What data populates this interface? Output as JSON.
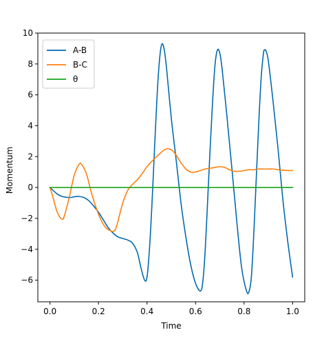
{
  "chart_data": {
    "type": "line",
    "title": "",
    "xlabel": "Time",
    "ylabel": "Momentum",
    "xlim": [
      -0.05,
      1.05
    ],
    "ylim": [
      -7.4,
      10.0
    ],
    "xticks": [
      0.0,
      0.2,
      0.4,
      0.6,
      0.8,
      1.0
    ],
    "xtick_labels": [
      "0.0",
      "0.2",
      "0.4",
      "0.6",
      "0.8",
      "1.0"
    ],
    "yticks": [
      -6,
      -4,
      -2,
      0,
      2,
      4,
      6,
      8,
      10
    ],
    "ytick_labels": [
      "−6",
      "−4",
      "−2",
      "0",
      "2",
      "4",
      "6",
      "8",
      "10"
    ],
    "grid": false,
    "legend_position": "top-left",
    "series": [
      {
        "name": "A-B",
        "color": "#0069b0",
        "points": [
          [
            0.0,
            0.0
          ],
          [
            0.03,
            -0.42
          ],
          [
            0.05,
            -0.58
          ],
          [
            0.08,
            -0.65
          ],
          [
            0.1,
            -0.6
          ],
          [
            0.12,
            -0.58
          ],
          [
            0.14,
            -0.65
          ],
          [
            0.16,
            -0.85
          ],
          [
            0.18,
            -1.2
          ],
          [
            0.2,
            -1.6
          ],
          [
            0.22,
            -2.1
          ],
          [
            0.24,
            -2.6
          ],
          [
            0.26,
            -2.95
          ],
          [
            0.28,
            -3.2
          ],
          [
            0.3,
            -3.3
          ],
          [
            0.32,
            -3.4
          ],
          [
            0.34,
            -3.6
          ],
          [
            0.36,
            -4.2
          ],
          [
            0.375,
            -5.2
          ],
          [
            0.39,
            -6.0
          ],
          [
            0.4,
            -5.8
          ],
          [
            0.41,
            -4.0
          ],
          [
            0.42,
            -1.2
          ],
          [
            0.43,
            2.2
          ],
          [
            0.44,
            5.5
          ],
          [
            0.45,
            8.0
          ],
          [
            0.46,
            9.25
          ],
          [
            0.47,
            9.0
          ],
          [
            0.48,
            7.8
          ],
          [
            0.5,
            4.5
          ],
          [
            0.52,
            1.8
          ],
          [
            0.54,
            -1.0
          ],
          [
            0.56,
            -3.2
          ],
          [
            0.58,
            -5.0
          ],
          [
            0.6,
            -6.2
          ],
          [
            0.62,
            -6.7
          ],
          [
            0.63,
            -6.1
          ],
          [
            0.64,
            -4.0
          ],
          [
            0.65,
            -0.8
          ],
          [
            0.66,
            2.5
          ],
          [
            0.67,
            5.5
          ],
          [
            0.68,
            7.9
          ],
          [
            0.69,
            8.9
          ],
          [
            0.7,
            8.7
          ],
          [
            0.71,
            7.6
          ],
          [
            0.73,
            4.5
          ],
          [
            0.75,
            1.2
          ],
          [
            0.77,
            -2.2
          ],
          [
            0.79,
            -5.2
          ],
          [
            0.81,
            -6.7
          ],
          [
            0.82,
            -6.75
          ],
          [
            0.83,
            -5.8
          ],
          [
            0.84,
            -3.0
          ],
          [
            0.85,
            0.5
          ],
          [
            0.86,
            4.0
          ],
          [
            0.87,
            7.0
          ],
          [
            0.88,
            8.7
          ],
          [
            0.885,
            8.9
          ],
          [
            0.89,
            8.85
          ],
          [
            0.9,
            8.2
          ],
          [
            0.92,
            5.5
          ],
          [
            0.94,
            2.5
          ],
          [
            0.96,
            -0.8
          ],
          [
            0.98,
            -3.5
          ],
          [
            1.0,
            -5.8
          ]
        ]
      },
      {
        "name": "B-C",
        "color": "#ff7f0e",
        "points": [
          [
            0.0,
            0.0
          ],
          [
            0.01,
            -0.5
          ],
          [
            0.03,
            -1.6
          ],
          [
            0.05,
            -2.05
          ],
          [
            0.06,
            -1.8
          ],
          [
            0.08,
            -0.6
          ],
          [
            0.1,
            0.8
          ],
          [
            0.12,
            1.5
          ],
          [
            0.13,
            1.5
          ],
          [
            0.15,
            0.9
          ],
          [
            0.17,
            -0.3
          ],
          [
            0.19,
            -1.3
          ],
          [
            0.21,
            -2.1
          ],
          [
            0.23,
            -2.6
          ],
          [
            0.25,
            -2.8
          ],
          [
            0.26,
            -2.85
          ],
          [
            0.27,
            -2.7
          ],
          [
            0.28,
            -2.2
          ],
          [
            0.3,
            -1.0
          ],
          [
            0.32,
            -0.2
          ],
          [
            0.34,
            0.2
          ],
          [
            0.36,
            0.5
          ],
          [
            0.38,
            0.9
          ],
          [
            0.4,
            1.35
          ],
          [
            0.42,
            1.7
          ],
          [
            0.44,
            2.0
          ],
          [
            0.46,
            2.3
          ],
          [
            0.48,
            2.5
          ],
          [
            0.5,
            2.45
          ],
          [
            0.52,
            2.1
          ],
          [
            0.54,
            1.6
          ],
          [
            0.56,
            1.2
          ],
          [
            0.58,
            1.0
          ],
          [
            0.6,
            1.0
          ],
          [
            0.62,
            1.1
          ],
          [
            0.64,
            1.2
          ],
          [
            0.66,
            1.25
          ],
          [
            0.68,
            1.3
          ],
          [
            0.7,
            1.35
          ],
          [
            0.72,
            1.3
          ],
          [
            0.74,
            1.15
          ],
          [
            0.76,
            1.05
          ],
          [
            0.78,
            1.05
          ],
          [
            0.8,
            1.1
          ],
          [
            0.82,
            1.15
          ],
          [
            0.84,
            1.15
          ],
          [
            0.86,
            1.2
          ],
          [
            0.88,
            1.2
          ],
          [
            0.9,
            1.2
          ],
          [
            0.92,
            1.2
          ],
          [
            0.94,
            1.15
          ],
          [
            0.96,
            1.12
          ],
          [
            0.98,
            1.1
          ],
          [
            1.0,
            1.1
          ]
        ]
      },
      {
        "name": "θ",
        "color": "#1aa31a",
        "points": [
          [
            0.0,
            0.0
          ],
          [
            1.0,
            0.0
          ]
        ]
      }
    ]
  }
}
